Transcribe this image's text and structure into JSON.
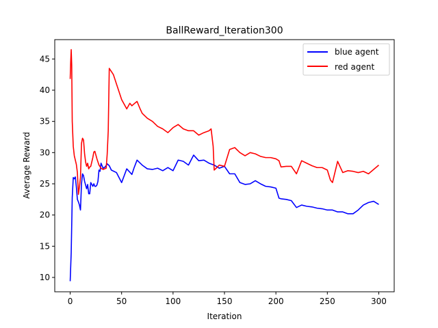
{
  "chart_data": {
    "type": "line",
    "title": "BallReward_Iteration300",
    "xlabel": "Iteration",
    "ylabel": "Average Reward",
    "xlim": [
      -15,
      315
    ],
    "ylim": [
      7.7,
      48.1
    ],
    "xticks": [
      0,
      50,
      100,
      150,
      200,
      250,
      300
    ],
    "yticks": [
      10,
      15,
      20,
      25,
      30,
      35,
      40,
      45
    ],
    "grid": false,
    "legend": "top-right",
    "series": [
      {
        "name": "blue agent",
        "color": "#0000ff",
        "x": [
          0,
          1,
          2,
          3,
          4,
          5,
          6,
          7,
          8,
          9,
          10,
          11,
          12,
          13,
          14,
          15,
          16,
          17,
          18,
          19,
          20,
          21,
          22,
          23,
          24,
          25,
          26,
          27,
          28,
          29,
          30,
          32,
          34,
          36,
          38,
          40,
          45,
          50,
          55,
          60,
          62,
          65,
          70,
          75,
          80,
          85,
          90,
          95,
          100,
          105,
          110,
          115,
          120,
          125,
          130,
          135,
          140,
          145,
          150,
          155,
          160,
          165,
          170,
          175,
          180,
          185,
          190,
          195,
          200,
          203,
          205,
          210,
          215,
          220,
          225,
          230,
          235,
          240,
          245,
          250,
          255,
          260,
          265,
          270,
          275,
          280,
          285,
          290,
          295,
          300
        ],
        "y": [
          9.4,
          14.0,
          22.8,
          26.0,
          25.8,
          26.1,
          24.5,
          22.5,
          22.1,
          21.6,
          20.8,
          25.0,
          26.6,
          26.3,
          25.4,
          24.8,
          24.2,
          24.9,
          23.4,
          23.4,
          25.2,
          24.9,
          24.6,
          25.0,
          24.6,
          24.6,
          24.8,
          25.4,
          27.2,
          27.0,
          28.3,
          27.5,
          27.7,
          28.2,
          27.9,
          27.2,
          26.8,
          25.2,
          27.4,
          26.5,
          27.5,
          28.8,
          28.0,
          27.4,
          27.3,
          27.5,
          27.1,
          27.6,
          27.1,
          28.8,
          28.6,
          28.0,
          29.6,
          28.7,
          28.8,
          28.3,
          28.0,
          27.5,
          27.8,
          26.6,
          26.6,
          25.2,
          24.9,
          25.0,
          25.5,
          25.0,
          24.6,
          24.5,
          24.3,
          22.7,
          22.6,
          22.5,
          22.3,
          21.2,
          21.6,
          21.4,
          21.3,
          21.1,
          21.0,
          20.8,
          20.8,
          20.5,
          20.5,
          20.2,
          20.2,
          20.8,
          21.6,
          22.0,
          22.2,
          21.7
        ]
      },
      {
        "name": "red agent",
        "color": "#ff0000",
        "x": [
          0,
          0.5,
          1,
          1.5,
          2,
          3,
          4,
          5,
          6,
          7,
          8,
          9,
          10,
          11,
          12,
          13,
          14,
          15,
          16,
          17,
          18,
          19,
          20,
          21,
          22,
          23,
          24,
          25,
          26,
          27,
          28,
          30,
          32,
          35,
          36,
          37,
          38,
          40,
          42,
          45,
          50,
          55,
          58,
          60,
          62,
          65,
          68,
          70,
          75,
          80,
          85,
          90,
          95,
          100,
          105,
          110,
          115,
          120,
          125,
          130,
          135,
          137,
          139,
          140,
          145,
          150,
          155,
          160,
          165,
          170,
          175,
          180,
          185,
          190,
          195,
          200,
          203,
          205,
          210,
          215,
          220,
          225,
          230,
          235,
          240,
          245,
          250,
          253,
          255,
          260,
          265,
          270,
          275,
          280,
          285,
          290,
          295,
          300
        ],
        "y": [
          41.8,
          44.5,
          46.5,
          44.0,
          35.0,
          31.0,
          29.5,
          28.8,
          28.1,
          26.8,
          23.3,
          24.5,
          26.0,
          31.5,
          32.3,
          32.0,
          29.8,
          28.5,
          27.8,
          28.3,
          27.4,
          27.7,
          27.8,
          28.5,
          29.2,
          30.1,
          30.2,
          29.6,
          29.0,
          28.5,
          28.0,
          27.5,
          27.3,
          27.5,
          29.8,
          33.5,
          43.5,
          43.0,
          42.5,
          41.0,
          38.5,
          37.0,
          37.9,
          37.5,
          37.8,
          38.2,
          37.0,
          36.3,
          35.5,
          35.0,
          34.2,
          33.8,
          33.2,
          34.0,
          34.5,
          33.8,
          33.5,
          33.5,
          32.8,
          33.2,
          33.5,
          33.8,
          31.0,
          27.2,
          28.0,
          27.8,
          30.5,
          30.8,
          30.0,
          29.5,
          30.0,
          29.8,
          29.4,
          29.2,
          29.2,
          29.0,
          28.7,
          27.7,
          27.8,
          27.8,
          26.6,
          28.7,
          28.3,
          27.9,
          27.6,
          27.6,
          27.2,
          25.6,
          25.2,
          28.6,
          26.8,
          27.1,
          27.0,
          26.8,
          27.0,
          26.6,
          27.3,
          28.0
        ]
      }
    ]
  }
}
